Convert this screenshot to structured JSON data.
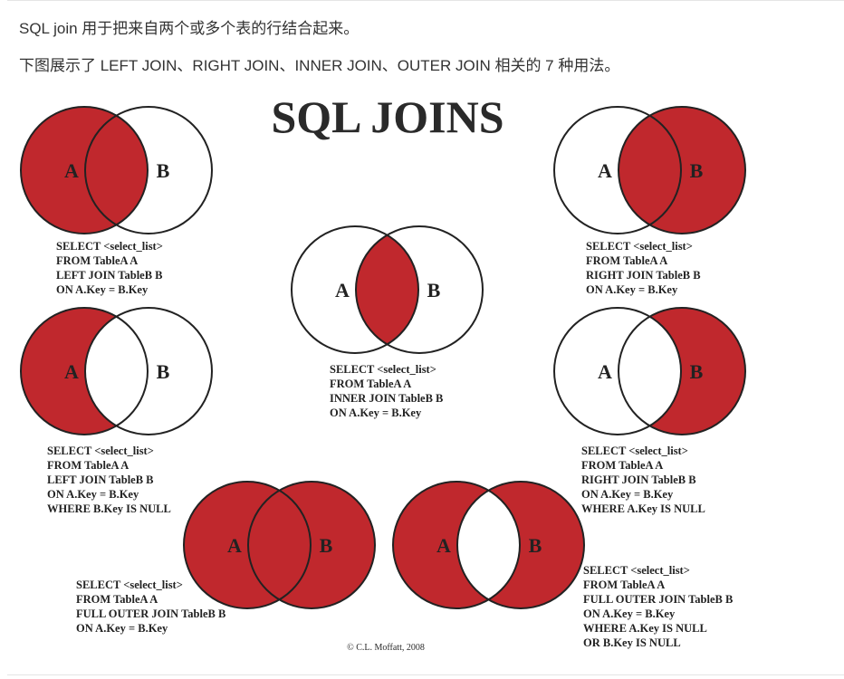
{
  "intro": {
    "line1": "SQL join 用于把来自两个或多个表的行结合起来。",
    "line2": "下图展示了 LEFT JOIN、RIGHT JOIN、INNER JOIN、OUTER JOIN 相关的 7 种用法。"
  },
  "diagram": {
    "title": "SQL JOINS",
    "copyright": "© C.L. Moffatt, 2008",
    "colors": {
      "fill": "#c0282d",
      "outline": "#222222",
      "title": "#2a2a2a",
      "text": "#222222"
    },
    "panels": [
      {
        "id": "left-join",
        "shading": "A",
        "label_a": "A",
        "label_b": "B",
        "sql": [
          "SELECT <select_list>",
          "FROM TableA A",
          "LEFT JOIN TableB B",
          "ON A.Key = B.Key"
        ]
      },
      {
        "id": "right-join",
        "shading": "B",
        "label_a": "A",
        "label_b": "B",
        "sql": [
          "SELECT <select_list>",
          "FROM TableA A",
          "RIGHT JOIN TableB B",
          "ON A.Key = B.Key"
        ]
      },
      {
        "id": "inner-join",
        "shading": "A∩B",
        "label_a": "A",
        "label_b": "B",
        "sql": [
          "SELECT <select_list>",
          "FROM TableA A",
          "INNER JOIN TableB B",
          "ON A.Key = B.Key"
        ]
      },
      {
        "id": "left-join-null",
        "shading": "A only",
        "label_a": "A",
        "label_b": "B",
        "sql": [
          "SELECT <select_list>",
          "FROM TableA A",
          "LEFT JOIN TableB B",
          "ON A.Key = B.Key",
          "WHERE B.Key IS NULL"
        ]
      },
      {
        "id": "right-join-null",
        "shading": "B only",
        "label_a": "A",
        "label_b": "B",
        "sql": [
          "SELECT <select_list>",
          "FROM TableA A",
          "RIGHT JOIN TableB B",
          "ON A.Key = B.Key",
          "WHERE A.Key IS NULL"
        ]
      },
      {
        "id": "full-outer-join",
        "shading": "A∪B",
        "label_a": "A",
        "label_b": "B",
        "sql": [
          "SELECT <select_list>",
          "FROM TableA A",
          "FULL OUTER JOIN TableB B",
          "ON A.Key = B.Key"
        ]
      },
      {
        "id": "full-outer-join-null",
        "shading": "A xor B",
        "label_a": "A",
        "label_b": "B",
        "sql": [
          "SELECT <select_list>",
          "FROM TableA A",
          "FULL OUTER JOIN TableB B",
          "ON A.Key = B.Key",
          "WHERE A.Key IS NULL",
          "OR B.Key IS NULL"
        ]
      }
    ]
  }
}
